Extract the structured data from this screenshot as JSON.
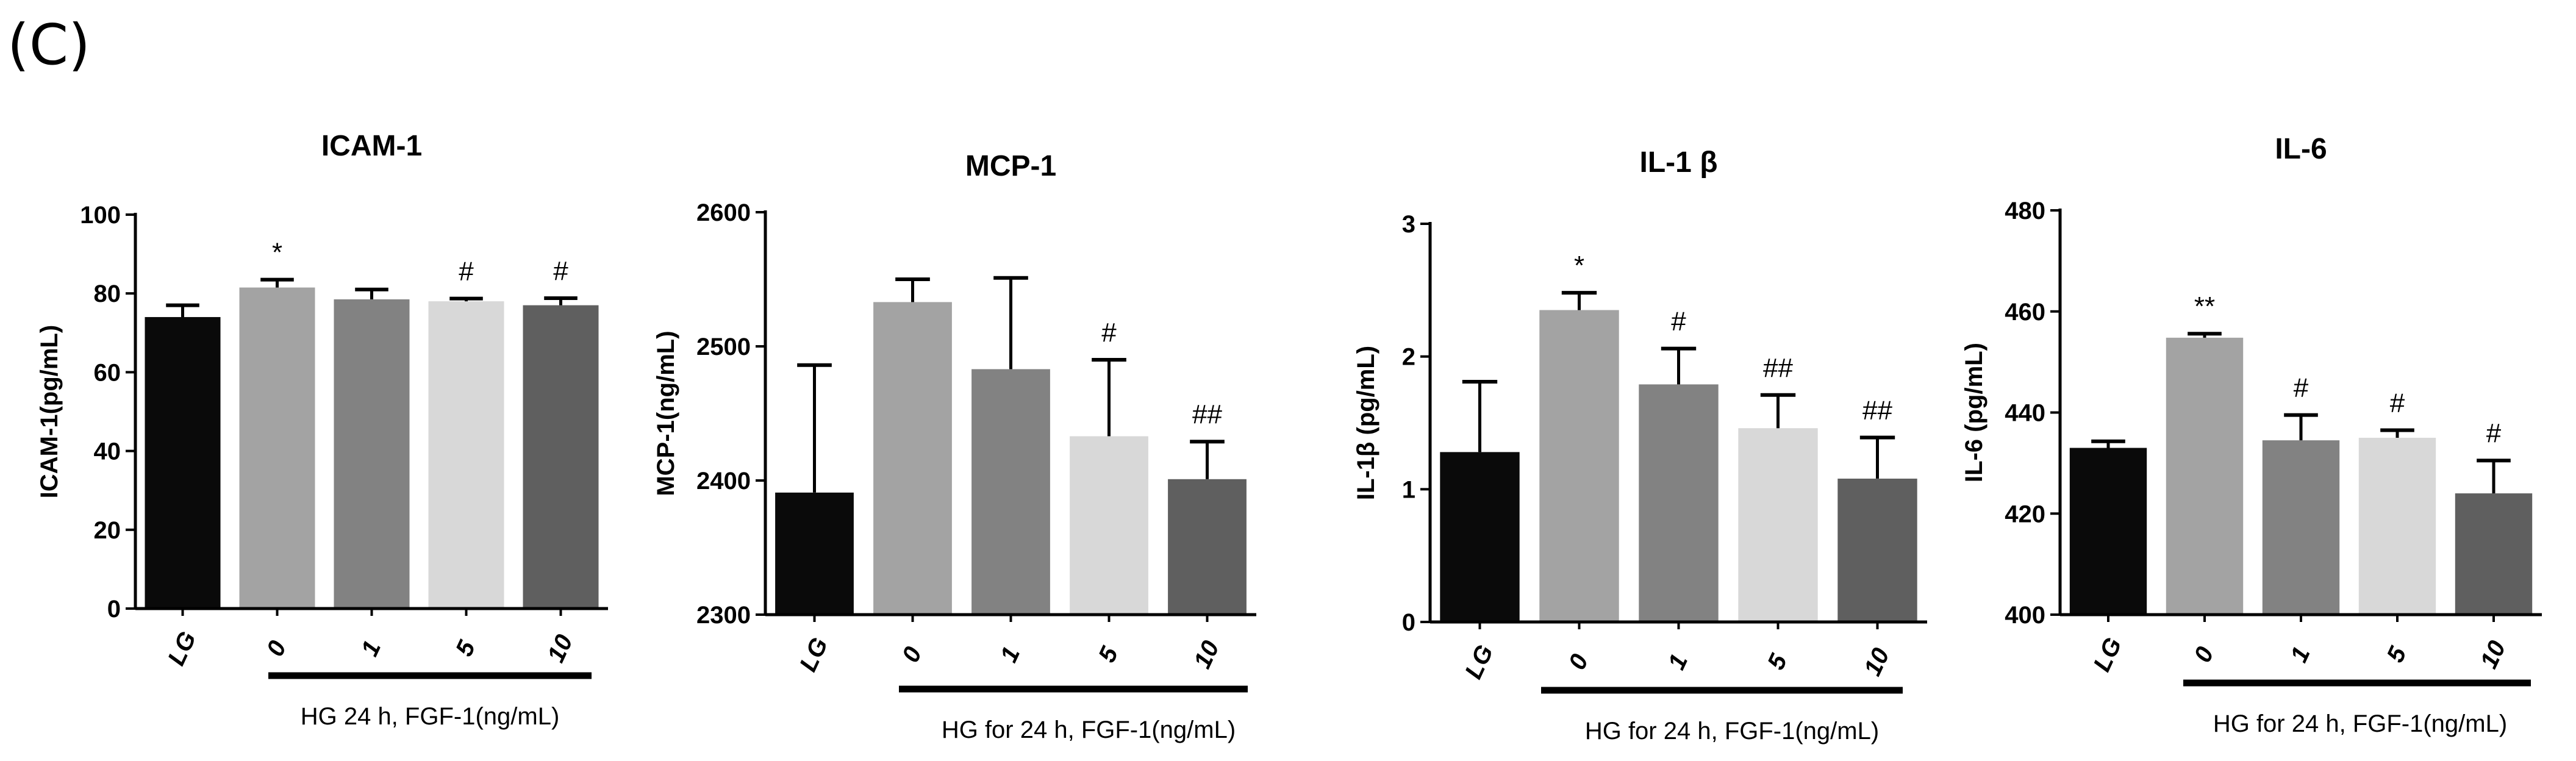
{
  "figure": {
    "panel_label": "(C)",
    "colors": {
      "LG": "#0a0a0a",
      "0": "#a3a3a3",
      "1": "#828282",
      "5": "#d8d8d8",
      "10": "#5f5f5f",
      "axis": "#000000"
    }
  },
  "chart_data": [
    {
      "type": "bar",
      "title": "ICAM-1",
      "ylabel": "ICAM-1(pg/mL)",
      "xlabel": "HG 24 h, FGF-1(ng/mL)",
      "categories": [
        "LG",
        "0",
        "1",
        "5",
        "10"
      ],
      "values": [
        74,
        81.5,
        78.5,
        78,
        77
      ],
      "errors": [
        3,
        2,
        2.5,
        0.7,
        1.8
      ],
      "annotations": [
        "",
        "*",
        "",
        "#",
        "#"
      ],
      "ylim": [
        0,
        100
      ],
      "yticks": [
        0,
        20,
        40,
        60,
        80,
        100
      ],
      "ytick_labels": [
        "0",
        "20",
        "40",
        "60",
        "80",
        "100"
      ]
    },
    {
      "type": "bar",
      "title": "MCP-1",
      "ylabel": "MCP-1(ng/mL)",
      "xlabel": "HG for 24 h, FGF-1(ng/mL)",
      "categories": [
        "LG",
        "0",
        "1",
        "5",
        "10"
      ],
      "values": [
        2391,
        2533,
        2483,
        2433,
        2401
      ],
      "errors": [
        95,
        17,
        68,
        57,
        28
      ],
      "annotations": [
        "",
        "",
        "",
        "#",
        "##"
      ],
      "ylim": [
        2300,
        2600
      ],
      "yticks": [
        2300,
        2400,
        2500,
        2600
      ],
      "ytick_labels": [
        "2300",
        "2400",
        "2500",
        "2600"
      ]
    },
    {
      "type": "bar",
      "title": "IL-1 β",
      "ylabel": "IL-1β  (pg/mL)",
      "xlabel": "HG for 24 h, FGF-1(ng/mL)",
      "categories": [
        "LG",
        "0",
        "1",
        "5",
        "10"
      ],
      "values": [
        1.28,
        2.35,
        1.79,
        1.46,
        1.08
      ],
      "errors": [
        0.53,
        0.13,
        0.27,
        0.25,
        0.31
      ],
      "annotations": [
        "",
        "*",
        "#",
        "##",
        "##"
      ],
      "ylim": [
        0,
        3
      ],
      "yticks": [
        0,
        1,
        2,
        3
      ],
      "ytick_labels": [
        "0",
        "1",
        "2",
        "3"
      ]
    },
    {
      "type": "bar",
      "title": "IL-6",
      "ylabel": "IL-6 (pg/mL)",
      "xlabel": "HG for 24 h, FGF-1(ng/mL)",
      "categories": [
        "LG",
        "0",
        "1",
        "5",
        "10"
      ],
      "values": [
        433,
        454.8,
        434.5,
        435,
        424
      ],
      "errors": [
        1.3,
        0.8,
        5,
        1.5,
        6.5
      ],
      "annotations": [
        "",
        "**",
        "#",
        "#",
        "#"
      ],
      "ylim": [
        400,
        480
      ],
      "yticks": [
        400,
        420,
        440,
        460,
        480
      ],
      "ytick_labels": [
        "400",
        "420",
        "440",
        "460",
        "480"
      ]
    }
  ]
}
